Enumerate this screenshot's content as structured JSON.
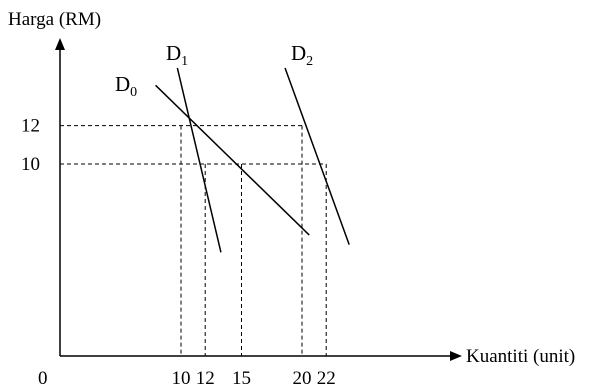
{
  "chart_data": {
    "type": "line",
    "title": "",
    "xlabel": "Kuantiti (unit)",
    "ylabel": "Harga (RM)",
    "origin_label": "0",
    "x_ticks": [
      "10",
      "12",
      "15",
      "20",
      "22"
    ],
    "y_ticks": [
      "12",
      "10"
    ],
    "xlim": [
      0,
      30
    ],
    "ylim": [
      0,
      15
    ],
    "grid": false,
    "legend": "none",
    "series": [
      {
        "name": "D",
        "subscript": "0",
        "x": [
          7.9,
          20.6
        ],
        "y": [
          14.1,
          6.3
        ]
      },
      {
        "name": "D",
        "subscript": "1",
        "x": [
          9.7,
          13.3
        ],
        "y": [
          15.0,
          5.4
        ]
      },
      {
        "name": "D",
        "subscript": "2",
        "x": [
          18.6,
          23.9
        ],
        "y": [
          15.0,
          5.8
        ]
      }
    ],
    "reference_points": [
      {
        "x": 10,
        "y": 12
      },
      {
        "x": 12,
        "y": 10
      },
      {
        "x": 15,
        "y": 10
      },
      {
        "x": 20,
        "y": 12
      },
      {
        "x": 22,
        "y": 10
      }
    ]
  }
}
